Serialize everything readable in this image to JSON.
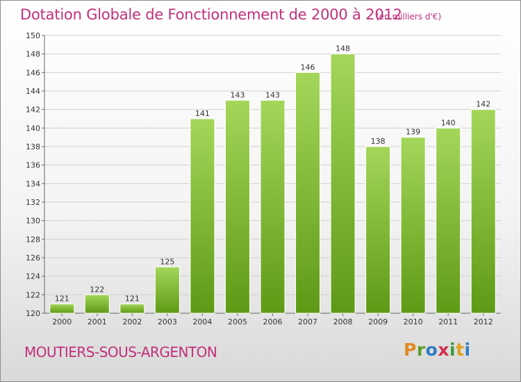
{
  "title": "Dotation Globale de Fonctionnement de 2000 à 2012",
  "subtitle": "(en milliers d'€)",
  "footer": {
    "commune": "MOUTIERS-SOUS-ARGENTON",
    "logo": "Proxiti"
  },
  "colors": {
    "title": "#c1307a",
    "bar_top": "#a4d65a",
    "bar_bottom": "#5e9a15",
    "grid": "#d0d0d0"
  },
  "chart_data": {
    "type": "bar",
    "categories": [
      "2000",
      "2001",
      "2002",
      "2003",
      "2004",
      "2005",
      "2006",
      "2007",
      "2008",
      "2009",
      "2010",
      "2011",
      "2012"
    ],
    "values": [
      121,
      122,
      121,
      125,
      141,
      143,
      143,
      146,
      148,
      138,
      139,
      140,
      142
    ],
    "ylim": [
      120,
      150
    ],
    "yticks": [
      120,
      122,
      124,
      126,
      128,
      130,
      132,
      134,
      136,
      138,
      140,
      142,
      144,
      146,
      148,
      150
    ],
    "grid": true,
    "title": "Dotation Globale de Fonctionnement de 2000 à 2012",
    "ylabel": "(en milliers d'€)"
  }
}
